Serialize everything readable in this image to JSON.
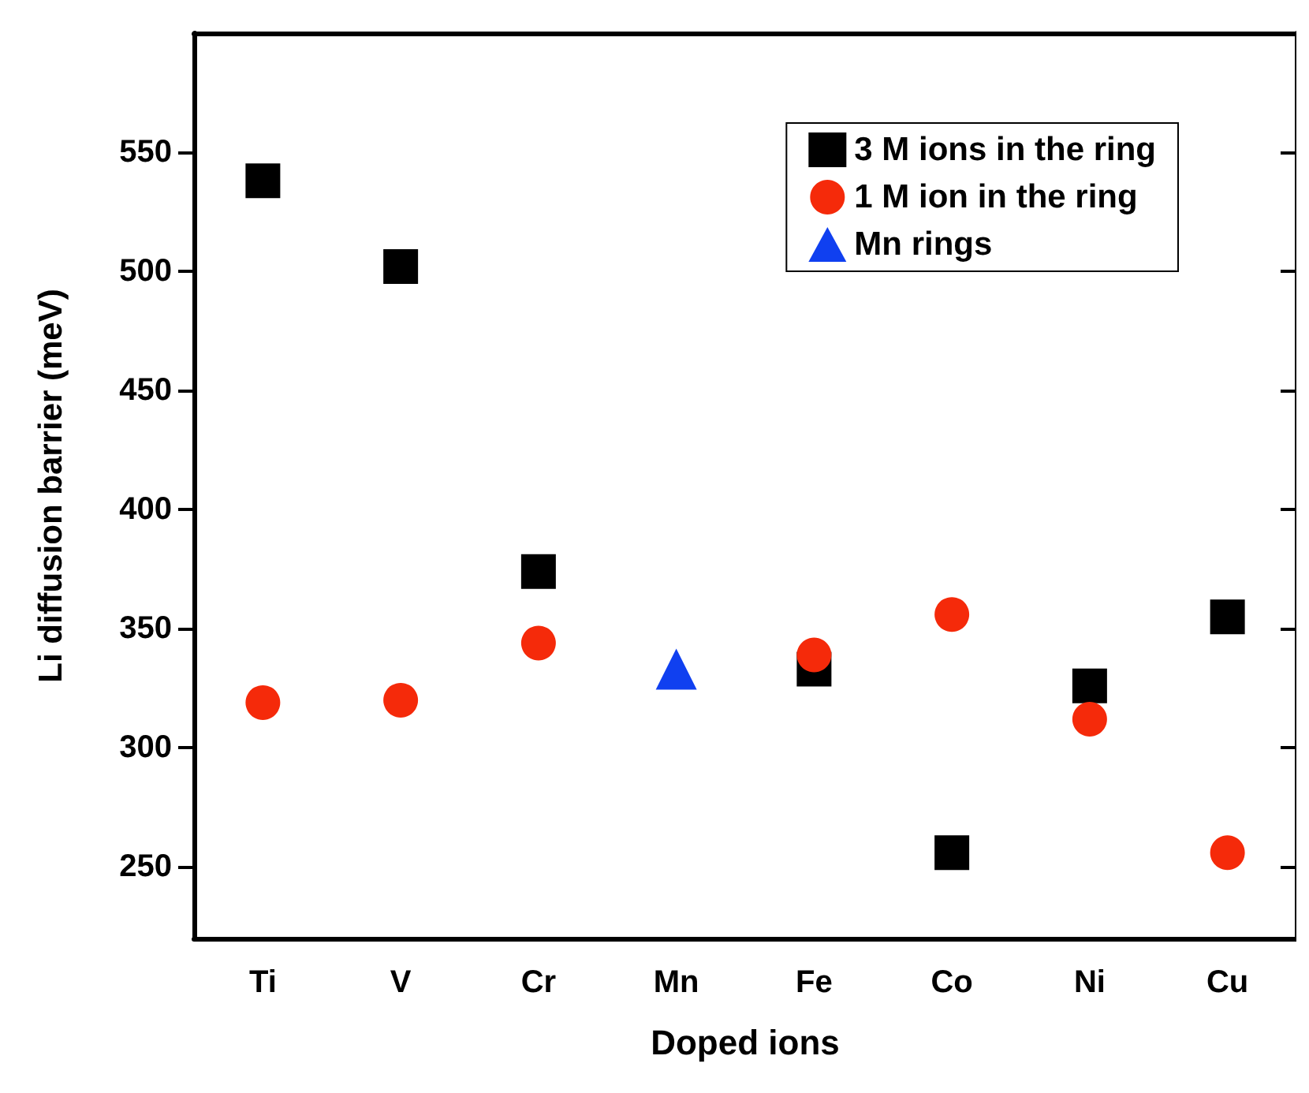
{
  "chart_data": {
    "type": "scatter",
    "xlabel": "Doped ions",
    "ylabel": "Li diffusion barrier (meV)",
    "categories": [
      "Ti",
      "V",
      "Cr",
      "Mn",
      "Fe",
      "Co",
      "Ni",
      "Cu"
    ],
    "series": [
      {
        "name": "3 M ions in the ring",
        "color": "#000000",
        "marker": "square",
        "values": [
          538,
          502,
          374,
          null,
          333,
          256,
          326,
          355
        ]
      },
      {
        "name": "1 M ion in the ring",
        "color": "#f52a0a",
        "marker": "circle",
        "values": [
          319,
          320,
          344,
          null,
          339,
          356,
          312,
          256
        ]
      },
      {
        "name": "Mn rings",
        "color": "#1040f0",
        "marker": "triangle",
        "values": [
          null,
          null,
          null,
          333,
          null,
          null,
          null,
          null
        ]
      }
    ],
    "ylim": [
      220,
      600
    ],
    "yticks": [
      250,
      300,
      350,
      400,
      450,
      500,
      550
    ],
    "grid": false,
    "legend": "top right"
  }
}
